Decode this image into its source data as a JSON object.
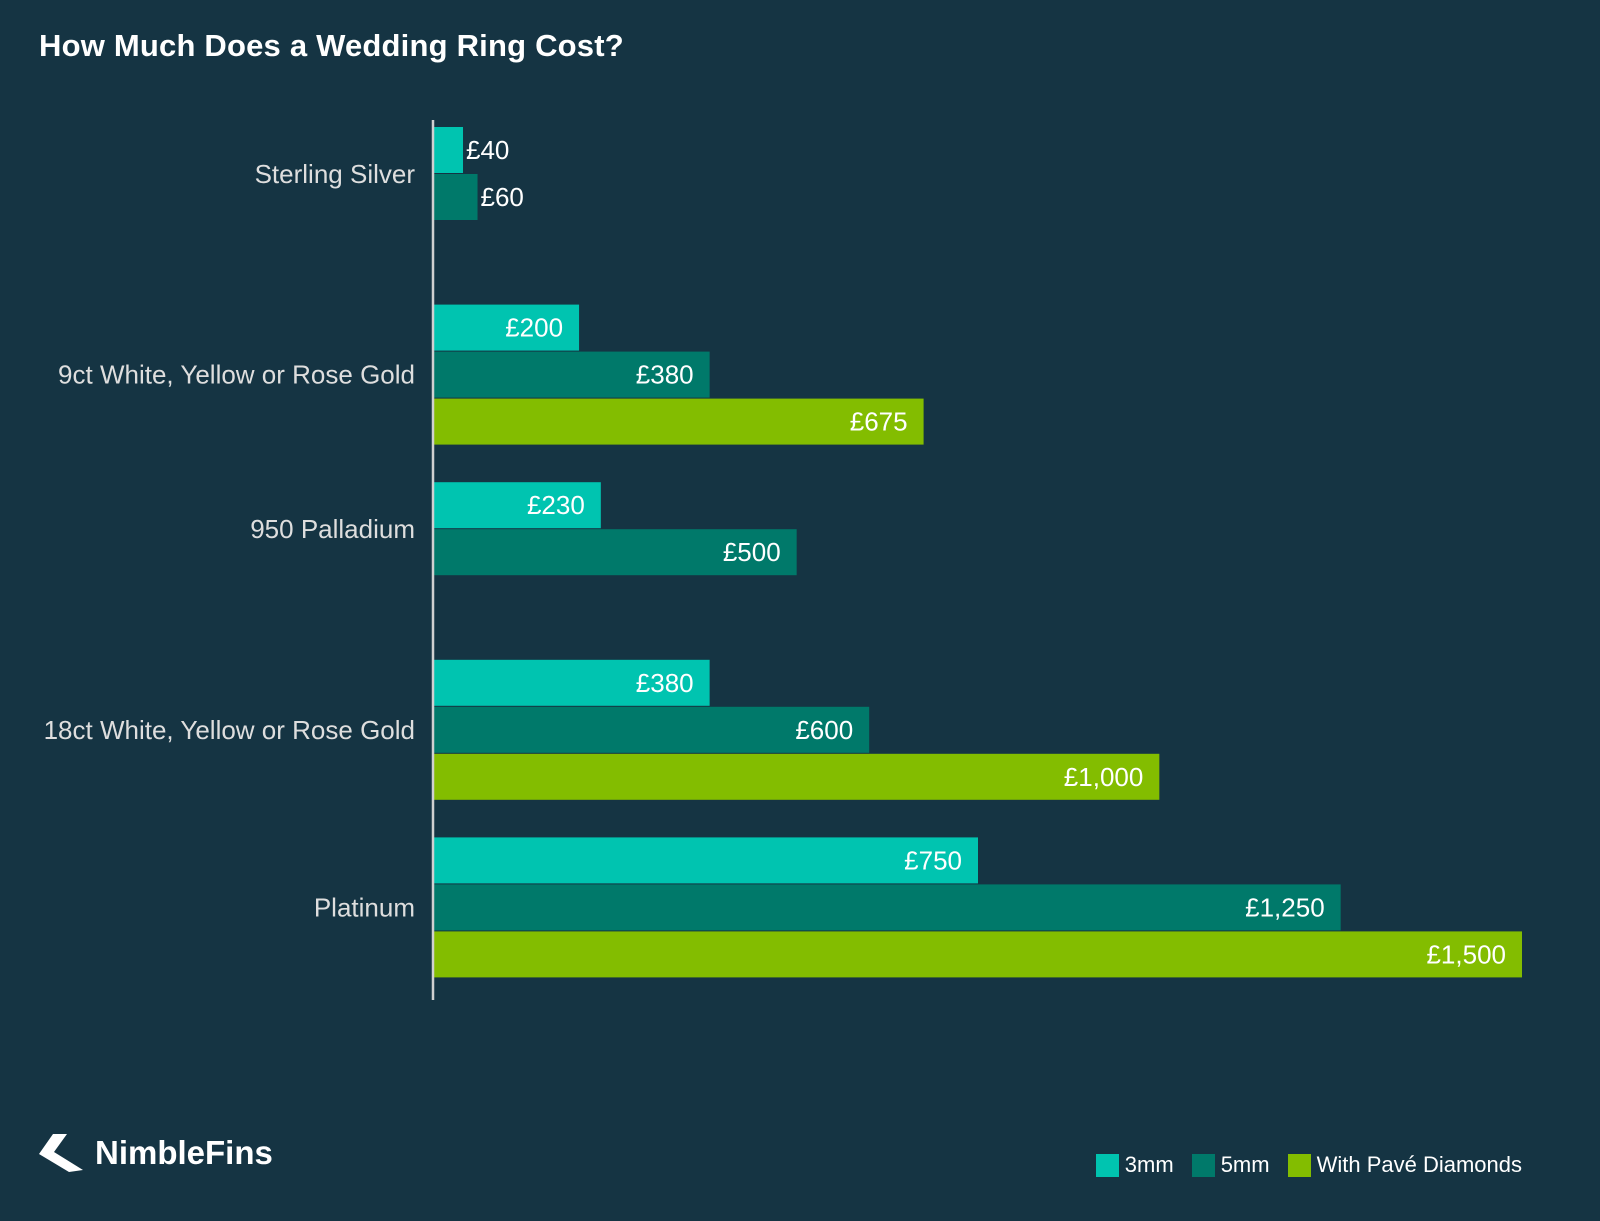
{
  "title": "How Much Does a Wedding Ring Cost?",
  "brand": {
    "name": "NimbleFins",
    "logo_icon": "nimblefins-logo-icon"
  },
  "colors": {
    "background": "#153443",
    "series_3mm": "#00c4b0",
    "series_5mm": "#00796a",
    "series_pave": "#83bd00",
    "axis": "#d0d0d0",
    "category_text": "#dedede",
    "value_text": "#ffffff"
  },
  "legend": [
    {
      "label": "3mm",
      "color": "#00c4b0"
    },
    {
      "label": "5mm",
      "color": "#00796a"
    },
    {
      "label": "With Pavé Diamonds",
      "color": "#83bd00"
    }
  ],
  "chart_data": {
    "type": "bar",
    "orientation": "horizontal",
    "title": "How Much Does a Wedding Ring Cost?",
    "xlabel": "",
    "ylabel": "",
    "xlim": [
      0,
      1500
    ],
    "grid": false,
    "legend_position": "bottom-right",
    "categories": [
      "Sterling Silver",
      "9ct White, Yellow or Rose Gold",
      "950 Palladium",
      "18ct White, Yellow or Rose Gold",
      "Platinum"
    ],
    "series": [
      {
        "name": "3mm",
        "color": "#00c4b0",
        "values": [
          40,
          200,
          230,
          380,
          750
        ],
        "labels": [
          "£40",
          "£200",
          "£230",
          "£380",
          "£750"
        ]
      },
      {
        "name": "5mm",
        "color": "#00796a",
        "values": [
          60,
          380,
          500,
          600,
          1250
        ],
        "labels": [
          "£60",
          "£380",
          "£500",
          "£600",
          "£1,250"
        ]
      },
      {
        "name": "With Pavé Diamonds",
        "color": "#83bd00",
        "values": [
          null,
          675,
          null,
          1000,
          1500
        ],
        "labels": [
          null,
          "£675",
          null,
          "£1,000",
          "£1,500"
        ]
      }
    ]
  }
}
